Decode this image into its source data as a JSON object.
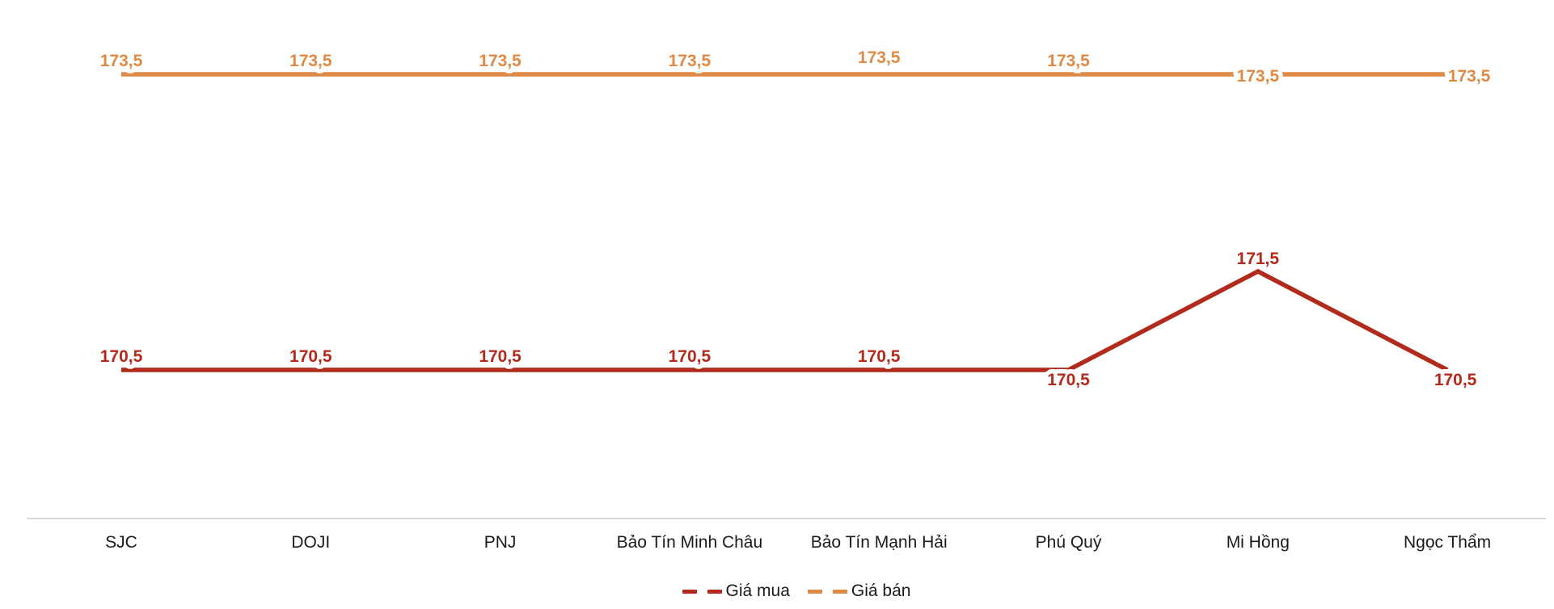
{
  "chart_data": {
    "type": "line",
    "title": "",
    "categories": [
      "SJC",
      "DOJI",
      "PNJ",
      "Bảo Tín Minh Châu",
      "Bảo Tín Mạnh Hải",
      "Phú Quý",
      "Mi Hồng",
      "Ngọc Thẩm"
    ],
    "series": [
      {
        "name": "Giá mua",
        "color": "#B12A1C",
        "values": [
          170.5,
          170.5,
          170.5,
          170.5,
          170.5,
          170.5,
          171.5,
          170.5
        ],
        "labels": [
          "170,5",
          "170,5",
          "170,5",
          "170,5",
          "170,5",
          "170,5",
          "171,5",
          "170,5"
        ],
        "label_positions": [
          "above",
          "above",
          "above",
          "above",
          "above",
          "below",
          "above-peak",
          "below-right"
        ]
      },
      {
        "name": "Giá bán",
        "color": "#DF8A44",
        "values": [
          173.5,
          173.5,
          173.5,
          173.5,
          173.5,
          173.5,
          173.5,
          173.5
        ],
        "labels": [
          "173,5",
          "173,5",
          "173,5",
          "173,5",
          "173,5",
          "173,5",
          "173,5",
          "173,5"
        ],
        "label_positions": [
          "above",
          "above",
          "above",
          "above",
          "above-high",
          "above",
          "center",
          "center-right"
        ]
      }
    ],
    "xlabel": "",
    "ylabel": "",
    "ylim": [
      169.0,
      174.3
    ],
    "grid": "off",
    "legend_position": "bottom",
    "axis_color": "#D9D9D9",
    "label_halo_color": "#ffffff",
    "background_color": "#ffffff"
  }
}
